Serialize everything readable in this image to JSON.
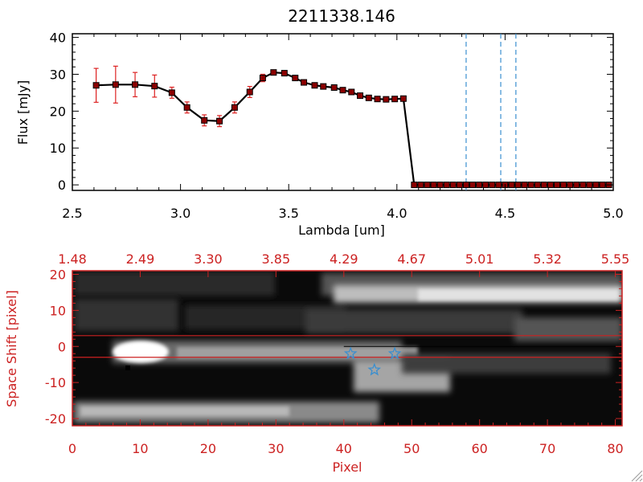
{
  "chart_data": [
    {
      "type": "line",
      "title": "2211338.146",
      "xlabel": "Lambda [um]",
      "ylabel": "Flux [mJy]",
      "xlim": [
        2.5,
        5.0
      ],
      "ylim": [
        -1.5,
        41
      ],
      "x_ticks": [
        "2.5",
        "3.0",
        "3.5",
        "4.0",
        "4.5",
        "5.0"
      ],
      "y_ticks": [
        "0",
        "10",
        "20",
        "30",
        "40"
      ],
      "grid": false,
      "series": [
        {
          "x": [
            2.61,
            2.7,
            2.79,
            2.88,
            2.96,
            3.03,
            3.11,
            3.18,
            3.25,
            3.32,
            3.38,
            3.43,
            3.48,
            3.53,
            3.57,
            3.62,
            3.66,
            3.71,
            3.75,
            3.79,
            3.83,
            3.87,
            3.91,
            3.95,
            3.99,
            4.03,
            4.08,
            4.11,
            4.14,
            4.17,
            4.2,
            4.23,
            4.26,
            4.29,
            4.32,
            4.35,
            4.38,
            4.41,
            4.44,
            4.47,
            4.5,
            4.53,
            4.56,
            4.59,
            4.62,
            4.65,
            4.68,
            4.71,
            4.74,
            4.77,
            4.8,
            4.83,
            4.86,
            4.89,
            4.92,
            4.95,
            4.98
          ],
          "y": [
            27.0,
            27.2,
            27.2,
            26.8,
            25.0,
            21.0,
            17.5,
            17.3,
            21.0,
            25.2,
            29.0,
            30.5,
            30.3,
            29.0,
            27.8,
            27.0,
            26.7,
            26.4,
            25.7,
            25.2,
            24.2,
            23.6,
            23.3,
            23.2,
            23.3,
            23.4,
            0,
            0,
            0,
            0,
            0,
            0,
            0,
            0,
            0,
            0,
            0,
            0,
            0,
            0,
            0,
            0,
            0,
            0,
            0,
            0,
            0,
            0,
            0,
            0,
            0,
            0,
            0,
            0,
            0,
            0,
            0
          ],
          "yerr": [
            4.6,
            5.0,
            3.3,
            3.0,
            1.5,
            1.5,
            1.5,
            1.5,
            1.5,
            1.5,
            1.0,
            0.5,
            0.5,
            0.5,
            0.5,
            0.5,
            0.5,
            0.5,
            0.5,
            0.5,
            0.5,
            0.5,
            0.5,
            0.5,
            0.5,
            0.5,
            0,
            0,
            0,
            0,
            0,
            0,
            0,
            0,
            0,
            0,
            0,
            0,
            0,
            0,
            0,
            0,
            0,
            0,
            0,
            0,
            0,
            0,
            0,
            0,
            0,
            0,
            0,
            0,
            0,
            0,
            0
          ]
        }
      ],
      "vlines": [
        4.32,
        4.48,
        4.55
      ],
      "colors": {
        "line": "#000000",
        "marker": "#8b0000",
        "errorbar": "#dd2222",
        "vline": "#3a8fd0",
        "zero_line": "#dd2222"
      }
    },
    {
      "type": "heatmap",
      "xlabel": "Pixel",
      "ylabel": "Space Shift [pixel]",
      "xlim": [
        0,
        81
      ],
      "ylim": [
        -22,
        21
      ],
      "x_ticks": [
        "0",
        "10",
        "20",
        "30",
        "40",
        "50",
        "60",
        "70",
        "80"
      ],
      "y_ticks": [
        "-20",
        "-10",
        "0",
        "10",
        "20"
      ],
      "top_axis_label_positions_data_units": [
        0,
        10,
        20,
        30,
        40,
        50,
        60,
        70,
        80
      ],
      "top_axis_labels": [
        "1.48",
        "2.49",
        "3.30",
        "3.85",
        "4.29",
        "4.67",
        "5.01",
        "5.32",
        "5.55"
      ],
      "horizontal_lines": [
        3,
        -3
      ],
      "center_line": 0,
      "star_markers": [
        {
          "x": 41,
          "y": -2
        },
        {
          "x": 44.5,
          "y": -6.5
        },
        {
          "x": 47.5,
          "y": -2
        }
      ],
      "colors": {
        "axis": "#cc2222",
        "lines": "#cc2222",
        "stars": "#3a8fd0"
      }
    }
  ]
}
